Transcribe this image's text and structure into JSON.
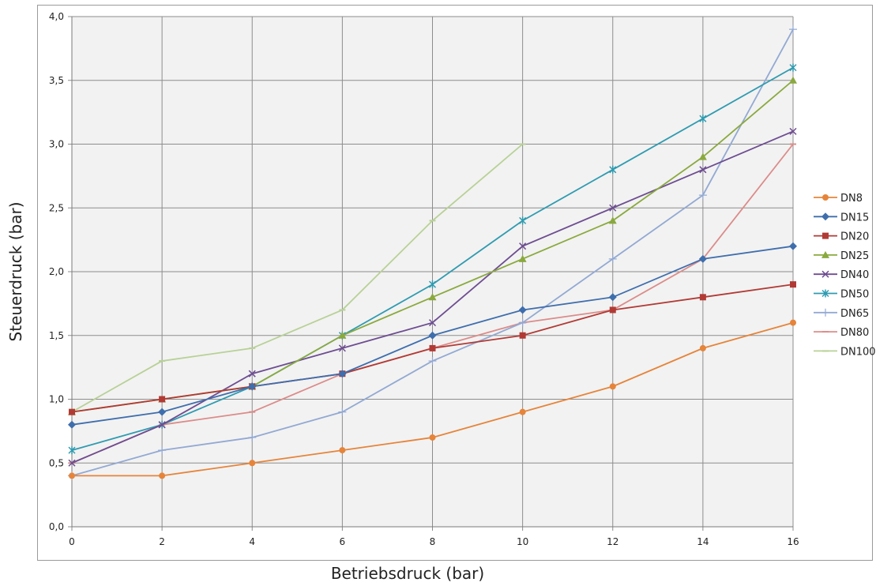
{
  "chart_data": {
    "type": "line",
    "title": "",
    "xlabel": "Betriebsdruck (bar)",
    "ylabel": "Steuerdruck (bar)",
    "xlim": [
      0,
      16
    ],
    "ylim": [
      0,
      4
    ],
    "x_ticks": [
      "0",
      "2",
      "4",
      "6",
      "8",
      "10",
      "12",
      "14",
      "16"
    ],
    "y_ticks": [
      "0,0",
      "0,5",
      "1,0",
      "1,5",
      "2,0",
      "2,5",
      "3,0",
      "3,5",
      "4,0"
    ],
    "grid": true,
    "legend_position": "right",
    "x": [
      0,
      2,
      4,
      6,
      8,
      10,
      12,
      14,
      16
    ],
    "series": [
      {
        "name": "DN8",
        "color": "#e6843a",
        "marker": "circle",
        "values": [
          0.4,
          0.4,
          0.5,
          0.6,
          0.7,
          0.9,
          1.1,
          1.4,
          1.6
        ]
      },
      {
        "name": "DN15",
        "color": "#3f6ead",
        "marker": "diamond",
        "values": [
          0.8,
          0.9,
          1.1,
          1.2,
          1.5,
          1.7,
          1.8,
          2.1,
          2.2
        ]
      },
      {
        "name": "DN20",
        "color": "#b23a35",
        "marker": "square",
        "values": [
          0.9,
          1.0,
          1.1,
          1.2,
          1.4,
          1.5,
          1.7,
          1.8,
          1.9
        ]
      },
      {
        "name": "DN25",
        "color": "#8aa93e",
        "marker": "triangle",
        "values": [
          0.9,
          1.0,
          1.1,
          1.5,
          1.8,
          2.1,
          2.4,
          2.9,
          3.5
        ]
      },
      {
        "name": "DN40",
        "color": "#6e4d91",
        "marker": "x",
        "values": [
          0.5,
          0.8,
          1.2,
          1.4,
          1.6,
          2.2,
          2.5,
          2.8,
          3.1
        ]
      },
      {
        "name": "DN50",
        "color": "#2f9bb0",
        "marker": "star",
        "values": [
          0.6,
          0.8,
          1.1,
          1.5,
          1.9,
          2.4,
          2.8,
          3.2,
          3.6
        ]
      },
      {
        "name": "DN65",
        "color": "#93a9d3",
        "marker": "plus",
        "values": [
          0.4,
          0.6,
          0.7,
          0.9,
          1.3,
          1.6,
          2.1,
          2.6,
          3.9
        ]
      },
      {
        "name": "DN80",
        "color": "#db8c8a",
        "marker": "dash",
        "values": [
          0.5,
          0.8,
          0.9,
          1.2,
          1.4,
          1.6,
          1.7,
          2.1,
          3.0
        ]
      },
      {
        "name": "DN100",
        "color": "#b8d196",
        "marker": "dash",
        "values": [
          0.9,
          1.3,
          1.4,
          1.7,
          2.4,
          3.0,
          null,
          null,
          null
        ]
      }
    ]
  }
}
